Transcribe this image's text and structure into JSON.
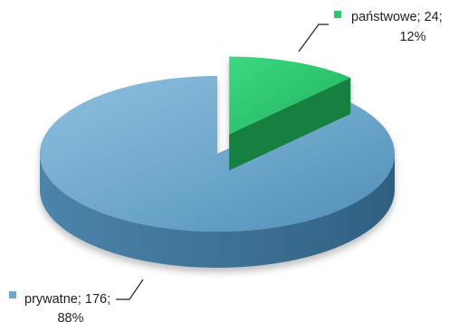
{
  "chart_data": {
    "type": "pie",
    "three_d": true,
    "exploded": true,
    "categories": [
      "państwowe",
      "prywatne"
    ],
    "values": [
      24,
      176
    ],
    "percents": [
      12,
      88
    ],
    "colors": [
      "#2fc56e",
      "#6fa9ce"
    ],
    "labels": [
      {
        "line1": "państwowe; 24;",
        "line2": "12%"
      },
      {
        "line1": "prywatne; 176;",
        "line2": "88%"
      }
    ],
    "title": "",
    "legend": "none"
  }
}
